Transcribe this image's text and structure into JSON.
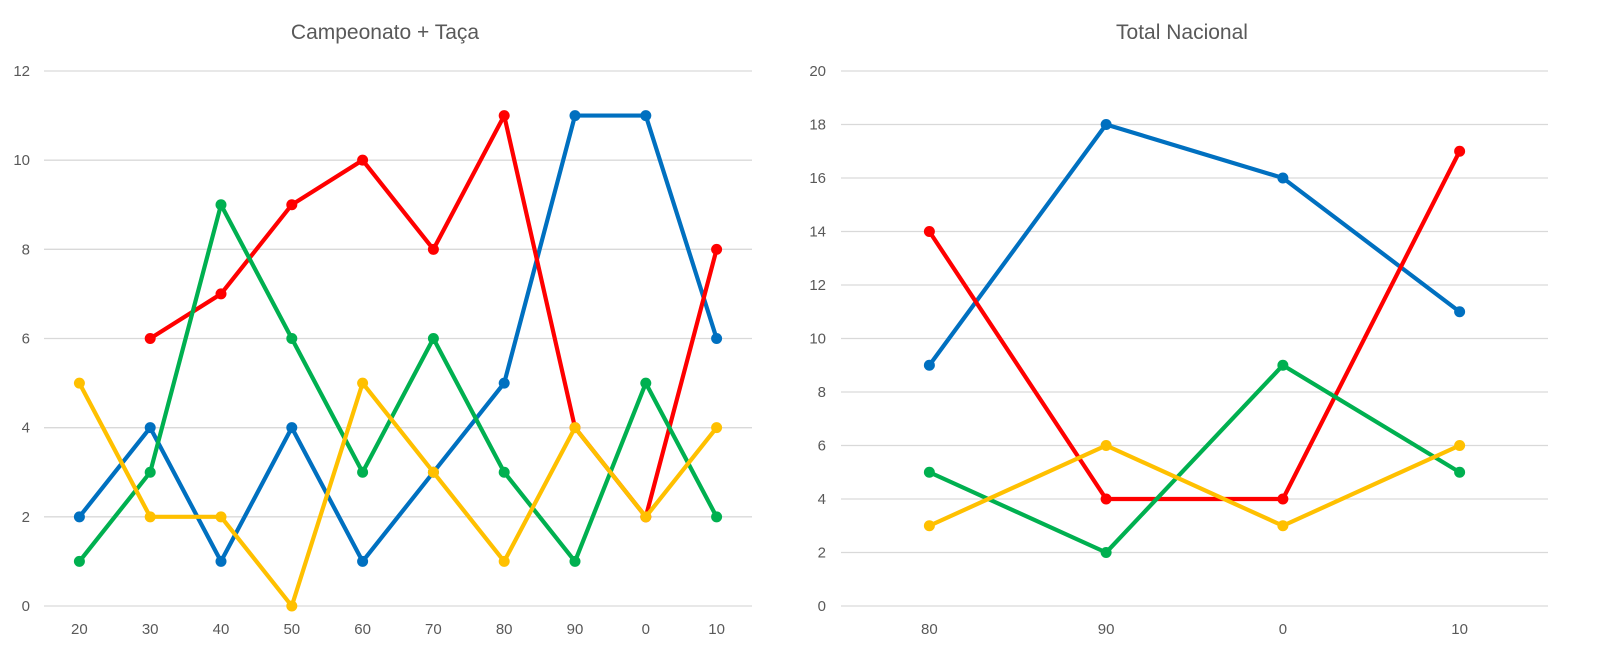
{
  "colors": {
    "blue": "#0070c0",
    "red": "#ff0000",
    "green": "#00b050",
    "yellow": "#ffc000",
    "grid": "#d9d9d9",
    "text": "#595959"
  },
  "chart_data": [
    {
      "type": "line",
      "title": "Campeonato + Taça",
      "xlabel": "",
      "ylabel": "",
      "categories": [
        "20",
        "30",
        "40",
        "50",
        "60",
        "70",
        "80",
        "90",
        "0",
        "10"
      ],
      "ylim": [
        0,
        12
      ],
      "yticks": [
        0,
        2,
        4,
        6,
        8,
        10,
        12
      ],
      "grid": true,
      "series": [
        {
          "name": "blue",
          "color": "#0070c0",
          "values": [
            2,
            4,
            1,
            4,
            1,
            3,
            5,
            11,
            11,
            6
          ]
        },
        {
          "name": "red",
          "color": "#ff0000",
          "values": [
            null,
            6,
            7,
            9,
            10,
            8,
            11,
            4,
            2,
            8
          ]
        },
        {
          "name": "green",
          "color": "#00b050",
          "values": [
            1,
            3,
            9,
            6,
            3,
            6,
            3,
            1,
            5,
            2
          ]
        },
        {
          "name": "yellow",
          "color": "#ffc000",
          "values": [
            5,
            2,
            2,
            0,
            5,
            3,
            1,
            4,
            2,
            4
          ]
        }
      ]
    },
    {
      "type": "line",
      "title": "Total Nacional",
      "xlabel": "",
      "ylabel": "",
      "categories": [
        "80",
        "90",
        "0",
        "10"
      ],
      "ylim": [
        0,
        20
      ],
      "yticks": [
        0,
        2,
        4,
        6,
        8,
        10,
        12,
        14,
        16,
        18,
        20
      ],
      "grid": true,
      "series": [
        {
          "name": "blue",
          "color": "#0070c0",
          "values": [
            9,
            18,
            16,
            11
          ]
        },
        {
          "name": "red",
          "color": "#ff0000",
          "values": [
            14,
            4,
            4,
            17
          ]
        },
        {
          "name": "green",
          "color": "#00b050",
          "values": [
            5,
            2,
            9,
            5
          ]
        },
        {
          "name": "yellow",
          "color": "#ffc000",
          "values": [
            3,
            6,
            3,
            6
          ]
        }
      ]
    }
  ]
}
